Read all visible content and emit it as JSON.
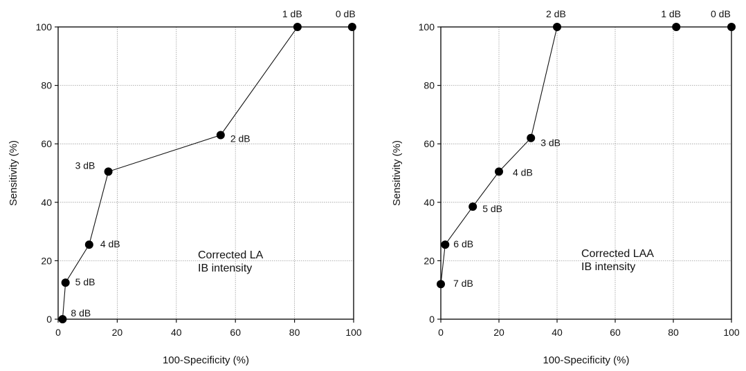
{
  "chart_data": [
    {
      "type": "line",
      "xlabel": "100-Specificity (%)",
      "ylabel": "Sensitivity (%)",
      "xlim": [
        0,
        100
      ],
      "ylim": [
        0,
        100
      ],
      "xticks": [
        0,
        20,
        40,
        60,
        80,
        100
      ],
      "yticks": [
        0,
        20,
        40,
        60,
        80,
        100
      ],
      "grid": true,
      "annotation": [
        "Corrected LA",
        "IB intensity"
      ],
      "points": [
        {
          "x": 1.5,
          "y": 0,
          "label": "8 dB"
        },
        {
          "x": 2.5,
          "y": 12.5,
          "label": "5 dB"
        },
        {
          "x": 10.5,
          "y": 25.5,
          "label": "4 dB"
        },
        {
          "x": 17,
          "y": 50.5,
          "label": "3 dB"
        },
        {
          "x": 55,
          "y": 63,
          "label": "2 dB"
        },
        {
          "x": 81,
          "y": 100,
          "label": "1 dB"
        },
        {
          "x": 99.5,
          "y": 100,
          "label": "0 dB"
        }
      ]
    },
    {
      "type": "line",
      "xlabel": "100-Specificity (%)",
      "ylabel": "Sensitivity (%)",
      "xlim": [
        0,
        100
      ],
      "ylim": [
        0,
        100
      ],
      "xticks": [
        0,
        20,
        40,
        60,
        80,
        100
      ],
      "yticks": [
        0,
        20,
        40,
        60,
        80,
        100
      ],
      "grid": true,
      "annotation": [
        "Corrected LAA",
        "IB intensity"
      ],
      "points": [
        {
          "x": 0,
          "y": 12,
          "label": "7 dB"
        },
        {
          "x": 1.5,
          "y": 25.5,
          "label": "6 dB"
        },
        {
          "x": 11,
          "y": 38.5,
          "label": "5 dB"
        },
        {
          "x": 20,
          "y": 50.5,
          "label": "4 dB"
        },
        {
          "x": 31,
          "y": 62,
          "label": "3 dB"
        },
        {
          "x": 40,
          "y": 100,
          "label": "2 dB"
        },
        {
          "x": 81,
          "y": 100,
          "label": "1 dB"
        },
        {
          "x": 100,
          "y": 100,
          "label": "0 dB"
        }
      ]
    }
  ]
}
